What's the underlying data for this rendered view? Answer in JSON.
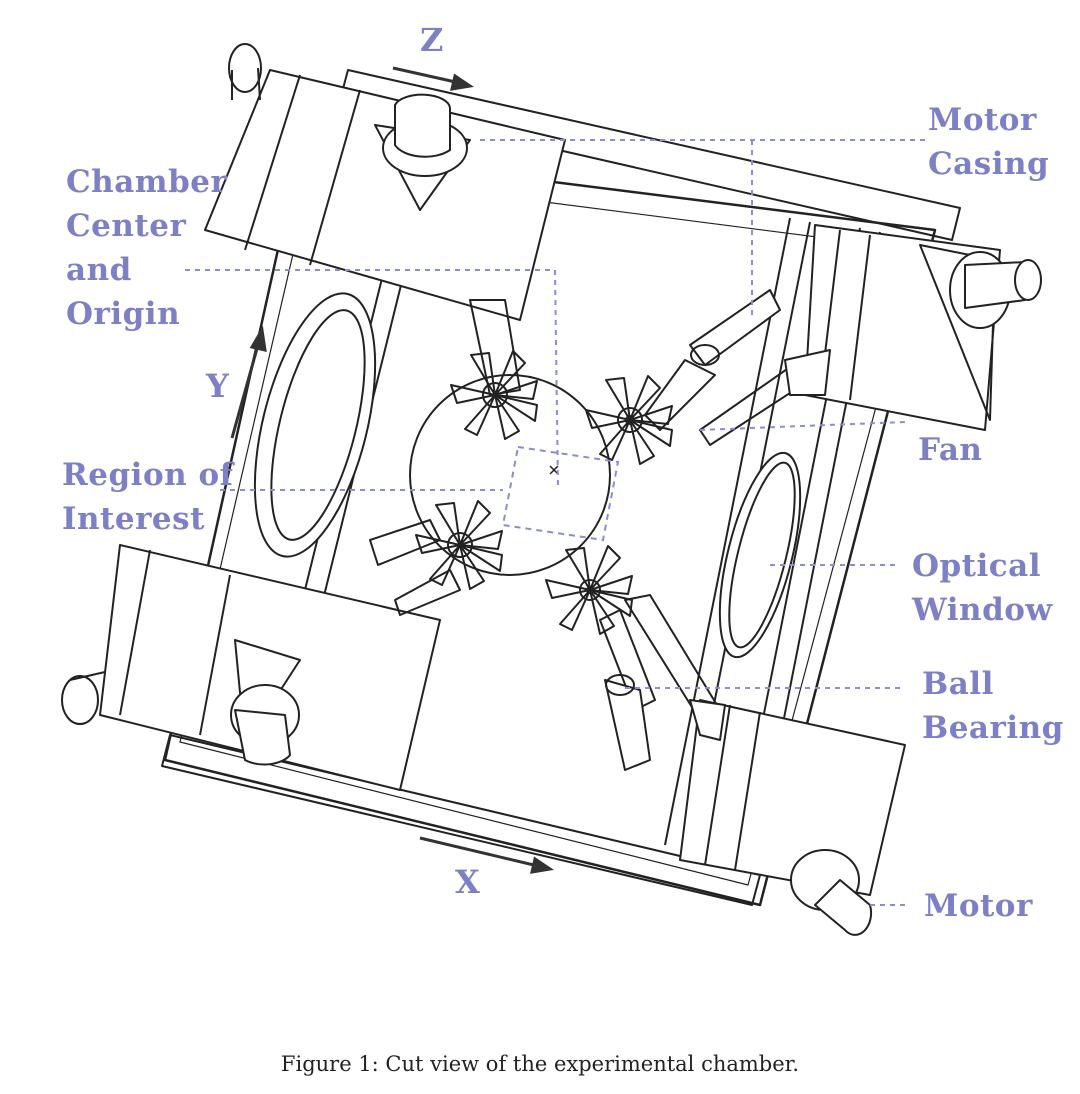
{
  "labels": {
    "motor_casing": [
      "Motor",
      "Casing"
    ],
    "chamber_center": [
      "Chamber",
      "Center",
      "and",
      "Origin"
    ],
    "fan": "Fan",
    "region_of_interest": [
      "Region of",
      "Interest"
    ],
    "optical_window": [
      "Optical",
      "Window"
    ],
    "ball_bearing": [
      "Ball",
      "Bearing"
    ],
    "motor": "Motor"
  },
  "axes": {
    "x": "X",
    "y": "Y",
    "z": "Z"
  },
  "caption": "Figure 1: Cut view of the experimental chamber.",
  "colors": {
    "label": "#7d80c4",
    "line": "#222222",
    "leader": "#8a8dd0"
  }
}
